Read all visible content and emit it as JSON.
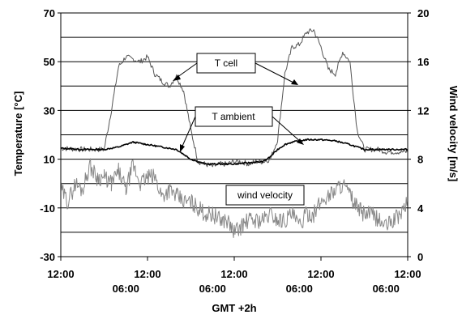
{
  "chart_data": {
    "type": "line",
    "xlabel": "GMT +2h",
    "ylabel": "Temperature [°C]",
    "y2label": "Wind velocity [m/s]",
    "ylim": [
      -30,
      70
    ],
    "y2lim": [
      0,
      20
    ],
    "yticks": [
      "70",
      "50",
      "30",
      "10",
      "-10",
      "-30"
    ],
    "y2ticks": [
      "20",
      "16",
      "12",
      "8",
      "4",
      "0"
    ],
    "xticks_top": [
      "12:00",
      "12:00",
      "12:00",
      "12:00",
      "12:00"
    ],
    "xticks_bottom": [
      "06:00",
      "06:00",
      "06:00",
      "06:00"
    ],
    "grid": true,
    "xlim_hours": [
      0,
      96
    ],
    "x_unit": "hours from first 12:00",
    "series": [
      {
        "name": "T cell",
        "axis": "left",
        "color": "#555555",
        "x": [
          0,
          6,
          12,
          14,
          16,
          18,
          20,
          22,
          24,
          26,
          28,
          30,
          32,
          34,
          36,
          38,
          40,
          42,
          44,
          46,
          48,
          50,
          52,
          54,
          56,
          58,
          60,
          62,
          64,
          66,
          68,
          70,
          72,
          74,
          76,
          78,
          80,
          82,
          84,
          86,
          88,
          90,
          96
        ],
        "values": [
          14.5,
          14,
          14,
          30,
          48,
          52,
          51,
          50,
          52,
          45,
          42,
          40,
          44,
          38,
          22,
          9,
          8,
          7,
          8,
          8,
          9,
          9,
          8,
          9,
          9,
          10,
          18,
          45,
          56,
          57,
          62,
          63,
          56,
          47,
          45,
          54,
          50,
          22,
          14,
          14,
          14,
          13,
          13
        ]
      },
      {
        "name": "T ambient",
        "axis": "left",
        "color": "#000000",
        "x": [
          0,
          6,
          12,
          16,
          20,
          24,
          28,
          32,
          34,
          36,
          38,
          40,
          44,
          48,
          52,
          56,
          58,
          60,
          62,
          64,
          66,
          68,
          70,
          72,
          76,
          80,
          84,
          88,
          92,
          96
        ],
        "values": [
          14.5,
          14,
          14,
          15,
          17,
          16,
          15,
          14,
          12,
          10,
          9,
          8,
          8,
          8,
          8.5,
          9,
          11,
          14,
          16,
          17,
          17.5,
          18,
          18,
          18,
          17.5,
          16,
          14,
          14,
          14,
          14
        ]
      },
      {
        "name": "wind velocity",
        "axis": "right",
        "color": "#888888",
        "x": [
          0,
          2,
          4,
          6,
          8,
          10,
          12,
          14,
          16,
          18,
          20,
          22,
          24,
          26,
          28,
          30,
          32,
          34,
          36,
          38,
          40,
          42,
          44,
          46,
          48,
          50,
          52,
          54,
          56,
          58,
          60,
          62,
          64,
          66,
          68,
          70,
          72,
          74,
          76,
          78,
          80,
          82,
          84,
          86,
          88,
          90,
          92,
          94,
          96
        ],
        "values": [
          5.5,
          4.5,
          6,
          5.5,
          7.5,
          6.5,
          6.5,
          6,
          7,
          5.5,
          7.5,
          6,
          6.5,
          6.5,
          5,
          5.5,
          5,
          4.5,
          4.5,
          4,
          3.5,
          3.5,
          3,
          3,
          2,
          2.5,
          3,
          3,
          3,
          3.5,
          3,
          3,
          3.5,
          2.5,
          3.5,
          3.5,
          4.5,
          5,
          5.5,
          6,
          5,
          4,
          3.5,
          3.5,
          3,
          2.5,
          3,
          3.5,
          4.5
        ]
      }
    ],
    "annotations": [
      {
        "label": "T cell"
      },
      {
        "label": "T ambient"
      },
      {
        "label": "wind velocity"
      }
    ]
  }
}
